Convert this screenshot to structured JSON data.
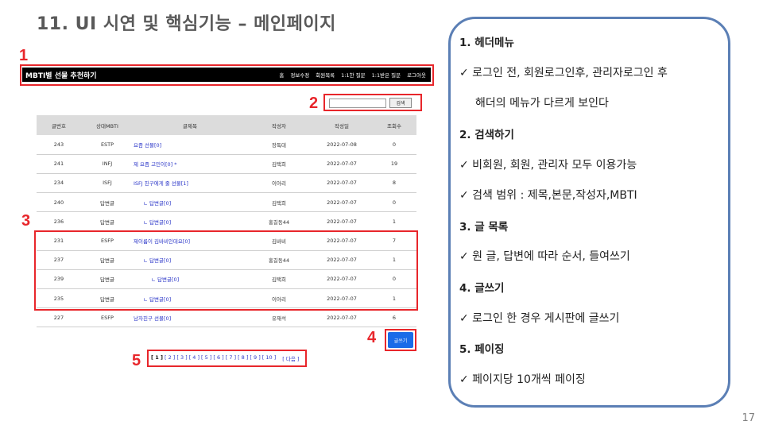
{
  "slide": {
    "title": "11. UI 시연 및 핵심기능 – 메인페이지",
    "page_number": "17",
    "markers": [
      "1",
      "2",
      "3",
      "4",
      "5"
    ]
  },
  "site": {
    "logo": "MBTI별 선물 추천하기",
    "nav": [
      "홈",
      "정보수정",
      "회원목록",
      "1:1한 질문",
      "1:1받은 질문",
      "로그아웃"
    ],
    "search_button": "검색",
    "write_button": "글쓰기"
  },
  "board": {
    "headers": [
      "글번호",
      "상대MBTI",
      "글제목",
      "작성자",
      "작성일",
      "조회수"
    ],
    "rows": [
      {
        "no": "243",
        "mbti": "ESTP",
        "title": "요즘 선물[0]",
        "indent": 0,
        "author": "장독대",
        "date": "2022-07-08",
        "views": "0"
      },
      {
        "no": "241",
        "mbti": "INFJ",
        "title": "제 요즘 고민이[0] *",
        "indent": 0,
        "author": "김택희",
        "date": "2022-07-07",
        "views": "19"
      },
      {
        "no": "234",
        "mbti": "ISFJ",
        "title": "ISFJ 친구에게 줄 선물[1]",
        "indent": 0,
        "author": "이아리",
        "date": "2022-07-07",
        "views": "8"
      },
      {
        "no": "240",
        "mbti": "답변글",
        "title": "ㄴ 답변글[0]",
        "indent": 1,
        "author": "김택희",
        "date": "2022-07-07",
        "views": "0"
      },
      {
        "no": "236",
        "mbti": "답변글",
        "title": "ㄴ 답변글[0]",
        "indent": 1,
        "author": "홍길동44",
        "date": "2022-07-07",
        "views": "1"
      },
      {
        "no": "231",
        "mbti": "ESFP",
        "title": "제이름이 김바비인데요[0]",
        "indent": 0,
        "author": "김바비",
        "date": "2022-07-07",
        "views": "7"
      },
      {
        "no": "237",
        "mbti": "답변글",
        "title": "ㄴ 답변글[0]",
        "indent": 1,
        "author": "홍길동44",
        "date": "2022-07-07",
        "views": "1"
      },
      {
        "no": "239",
        "mbti": "답변글",
        "title": "ㄴ 답변글[0]",
        "indent": 2,
        "author": "김택희",
        "date": "2022-07-07",
        "views": "0"
      },
      {
        "no": "235",
        "mbti": "답변글",
        "title": "ㄴ 답변글[0]",
        "indent": 1,
        "author": "이아리",
        "date": "2022-07-07",
        "views": "1"
      },
      {
        "no": "227",
        "mbti": "ESFP",
        "title": "남자친구 선물[0]",
        "indent": 0,
        "author": "유재석",
        "date": "2022-07-07",
        "views": "6"
      }
    ]
  },
  "pagination": {
    "pages": [
      "[ 1 ]",
      "[ 2 ]",
      "[ 3 ]",
      "[ 4 ]",
      "[ 5 ]",
      "[ 6 ]",
      "[ 7 ]",
      "[ 8 ]",
      "[ 9 ]",
      "[ 10 ]"
    ],
    "current": "[ 1 ]",
    "next": "[ 다음 ]"
  },
  "panel": {
    "items": [
      {
        "text": "1.  헤더메뉴",
        "type": "heading"
      },
      {
        "text": "✓ 로그인 전, 회원로그인후, 관리자로그인 후",
        "type": "bullet"
      },
      {
        "text": "해더의 메뉴가 다르게 보인다",
        "type": "indent"
      },
      {
        "text": "2. 검색하기",
        "type": "heading"
      },
      {
        "text": "✓ 비회원, 회원, 관리자 모두 이용가능",
        "type": "bullet"
      },
      {
        "text": "✓ 검색 범위 : 제목,본문,작성자,MBTI",
        "type": "bullet"
      },
      {
        "text": "3. 글 목록",
        "type": "heading"
      },
      {
        "text": "✓ 원 글, 답변에 따라 순서, 들여쓰기",
        "type": "bullet"
      },
      {
        "text": "4. 글쓰기",
        "type": "heading"
      },
      {
        "text": "✓  로그인 한 경우 게시판에 글쓰기",
        "type": "bullet"
      },
      {
        "text": "5. 페이징",
        "type": "heading"
      },
      {
        "text": "✓ 페이지당 10개씩 페이징",
        "type": "bullet"
      }
    ]
  },
  "colors": {
    "marker_red": "#e8262b",
    "panel_border": "#5b7fb5",
    "link_blue": "#2a35c8",
    "button_blue": "#1a6be8"
  }
}
